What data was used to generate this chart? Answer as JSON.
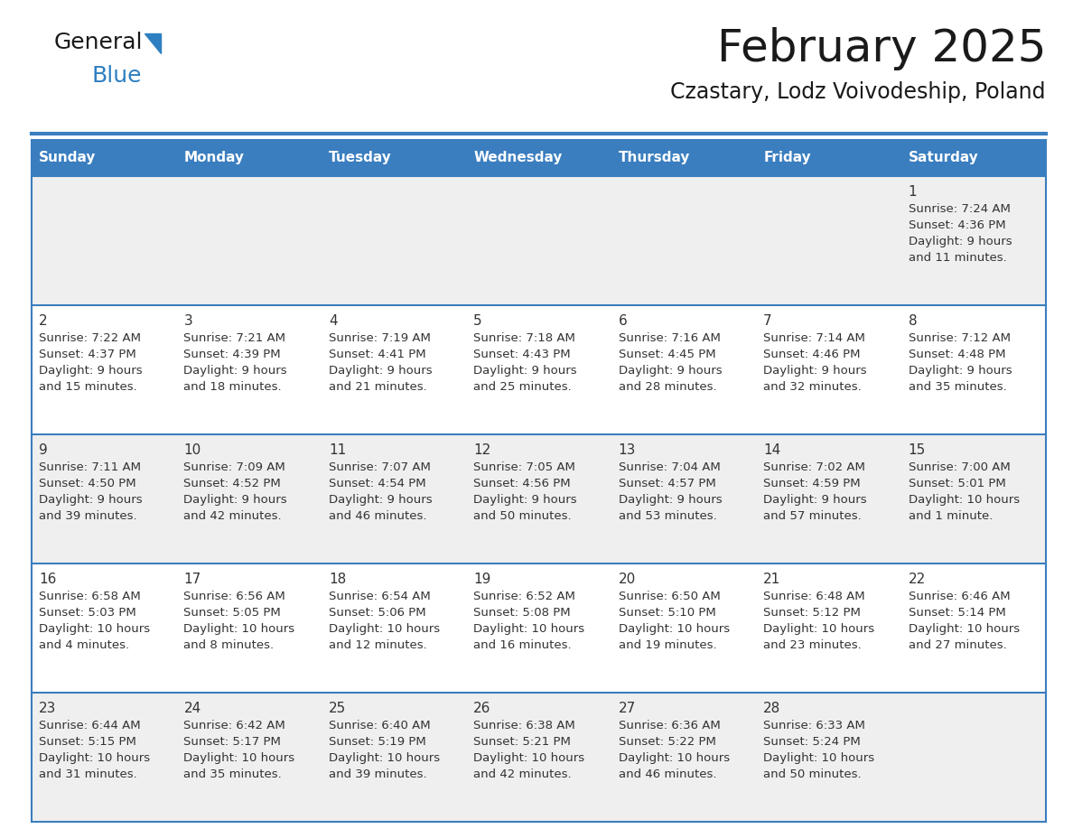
{
  "title": "February 2025",
  "subtitle": "Czastary, Lodz Voivodeship, Poland",
  "header_bg": "#3a7ebf",
  "header_text": "#FFFFFF",
  "row_bg": [
    "#EFEFEF",
    "#FFFFFF",
    "#EFEFEF",
    "#FFFFFF",
    "#EFEFEF"
  ],
  "border_color": "#3a7ebf",
  "day_headers": [
    "Sunday",
    "Monday",
    "Tuesday",
    "Wednesday",
    "Thursday",
    "Friday",
    "Saturday"
  ],
  "title_color": "#1a1a1a",
  "subtitle_color": "#1a1a1a",
  "cell_text_color": "#333333",
  "day_num_color": "#333333",
  "calendar": [
    [
      null,
      null,
      null,
      null,
      null,
      null,
      {
        "day": "1",
        "sunrise": "7:24 AM",
        "sunset": "4:36 PM",
        "dl1": "Daylight: 9 hours",
        "dl2": "and 11 minutes."
      }
    ],
    [
      {
        "day": "2",
        "sunrise": "7:22 AM",
        "sunset": "4:37 PM",
        "dl1": "Daylight: 9 hours",
        "dl2": "and 15 minutes."
      },
      {
        "day": "3",
        "sunrise": "7:21 AM",
        "sunset": "4:39 PM",
        "dl1": "Daylight: 9 hours",
        "dl2": "and 18 minutes."
      },
      {
        "day": "4",
        "sunrise": "7:19 AM",
        "sunset": "4:41 PM",
        "dl1": "Daylight: 9 hours",
        "dl2": "and 21 minutes."
      },
      {
        "day": "5",
        "sunrise": "7:18 AM",
        "sunset": "4:43 PM",
        "dl1": "Daylight: 9 hours",
        "dl2": "and 25 minutes."
      },
      {
        "day": "6",
        "sunrise": "7:16 AM",
        "sunset": "4:45 PM",
        "dl1": "Daylight: 9 hours",
        "dl2": "and 28 minutes."
      },
      {
        "day": "7",
        "sunrise": "7:14 AM",
        "sunset": "4:46 PM",
        "dl1": "Daylight: 9 hours",
        "dl2": "and 32 minutes."
      },
      {
        "day": "8",
        "sunrise": "7:12 AM",
        "sunset": "4:48 PM",
        "dl1": "Daylight: 9 hours",
        "dl2": "and 35 minutes."
      }
    ],
    [
      {
        "day": "9",
        "sunrise": "7:11 AM",
        "sunset": "4:50 PM",
        "dl1": "Daylight: 9 hours",
        "dl2": "and 39 minutes."
      },
      {
        "day": "10",
        "sunrise": "7:09 AM",
        "sunset": "4:52 PM",
        "dl1": "Daylight: 9 hours",
        "dl2": "and 42 minutes."
      },
      {
        "day": "11",
        "sunrise": "7:07 AM",
        "sunset": "4:54 PM",
        "dl1": "Daylight: 9 hours",
        "dl2": "and 46 minutes."
      },
      {
        "day": "12",
        "sunrise": "7:05 AM",
        "sunset": "4:56 PM",
        "dl1": "Daylight: 9 hours",
        "dl2": "and 50 minutes."
      },
      {
        "day": "13",
        "sunrise": "7:04 AM",
        "sunset": "4:57 PM",
        "dl1": "Daylight: 9 hours",
        "dl2": "and 53 minutes."
      },
      {
        "day": "14",
        "sunrise": "7:02 AM",
        "sunset": "4:59 PM",
        "dl1": "Daylight: 9 hours",
        "dl2": "and 57 minutes."
      },
      {
        "day": "15",
        "sunrise": "7:00 AM",
        "sunset": "5:01 PM",
        "dl1": "Daylight: 10 hours",
        "dl2": "and 1 minute."
      }
    ],
    [
      {
        "day": "16",
        "sunrise": "6:58 AM",
        "sunset": "5:03 PM",
        "dl1": "Daylight: 10 hours",
        "dl2": "and 4 minutes."
      },
      {
        "day": "17",
        "sunrise": "6:56 AM",
        "sunset": "5:05 PM",
        "dl1": "Daylight: 10 hours",
        "dl2": "and 8 minutes."
      },
      {
        "day": "18",
        "sunrise": "6:54 AM",
        "sunset": "5:06 PM",
        "dl1": "Daylight: 10 hours",
        "dl2": "and 12 minutes."
      },
      {
        "day": "19",
        "sunrise": "6:52 AM",
        "sunset": "5:08 PM",
        "dl1": "Daylight: 10 hours",
        "dl2": "and 16 minutes."
      },
      {
        "day": "20",
        "sunrise": "6:50 AM",
        "sunset": "5:10 PM",
        "dl1": "Daylight: 10 hours",
        "dl2": "and 19 minutes."
      },
      {
        "day": "21",
        "sunrise": "6:48 AM",
        "sunset": "5:12 PM",
        "dl1": "Daylight: 10 hours",
        "dl2": "and 23 minutes."
      },
      {
        "day": "22",
        "sunrise": "6:46 AM",
        "sunset": "5:14 PM",
        "dl1": "Daylight: 10 hours",
        "dl2": "and 27 minutes."
      }
    ],
    [
      {
        "day": "23",
        "sunrise": "6:44 AM",
        "sunset": "5:15 PM",
        "dl1": "Daylight: 10 hours",
        "dl2": "and 31 minutes."
      },
      {
        "day": "24",
        "sunrise": "6:42 AM",
        "sunset": "5:17 PM",
        "dl1": "Daylight: 10 hours",
        "dl2": "and 35 minutes."
      },
      {
        "day": "25",
        "sunrise": "6:40 AM",
        "sunset": "5:19 PM",
        "dl1": "Daylight: 10 hours",
        "dl2": "and 39 minutes."
      },
      {
        "day": "26",
        "sunrise": "6:38 AM",
        "sunset": "5:21 PM",
        "dl1": "Daylight: 10 hours",
        "dl2": "and 42 minutes."
      },
      {
        "day": "27",
        "sunrise": "6:36 AM",
        "sunset": "5:22 PM",
        "dl1": "Daylight: 10 hours",
        "dl2": "and 46 minutes."
      },
      {
        "day": "28",
        "sunrise": "6:33 AM",
        "sunset": "5:24 PM",
        "dl1": "Daylight: 10 hours",
        "dl2": "and 50 minutes."
      },
      null
    ]
  ],
  "logo_black": "#1a1a1a",
  "logo_blue": "#2E7FC1"
}
